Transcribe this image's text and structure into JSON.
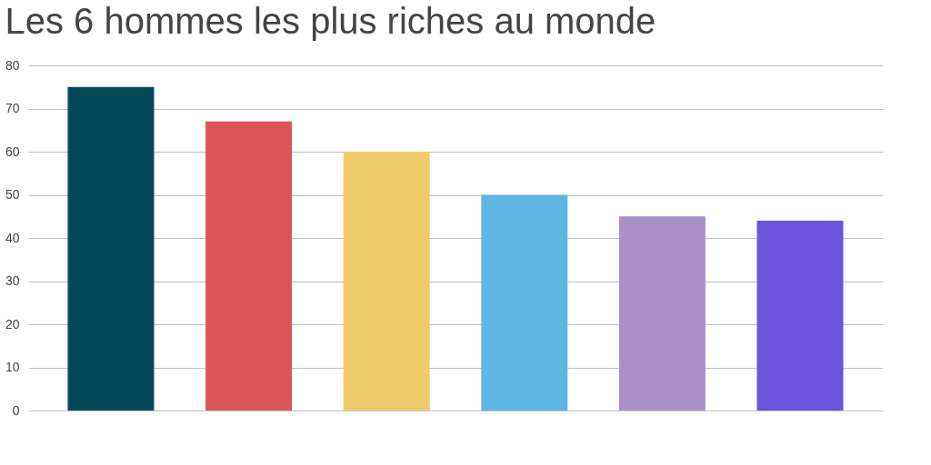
{
  "chart_data": {
    "type": "bar",
    "title": "Les 6 hommes les plus riches au monde",
    "categories": [
      null,
      null,
      null,
      null,
      null,
      null
    ],
    "values": [
      75,
      67,
      60,
      50,
      45,
      44
    ],
    "colors": [
      "#054a5a",
      "#dc5555",
      "#f0ca6a",
      "#5fb6e3",
      "#aa91c7",
      "#6c54dc"
    ],
    "ylim": [
      0,
      80
    ],
    "yticks": [
      0,
      10,
      20,
      30,
      40,
      50,
      60,
      70,
      80
    ],
    "grid": "y",
    "tick_labels": "y"
  }
}
